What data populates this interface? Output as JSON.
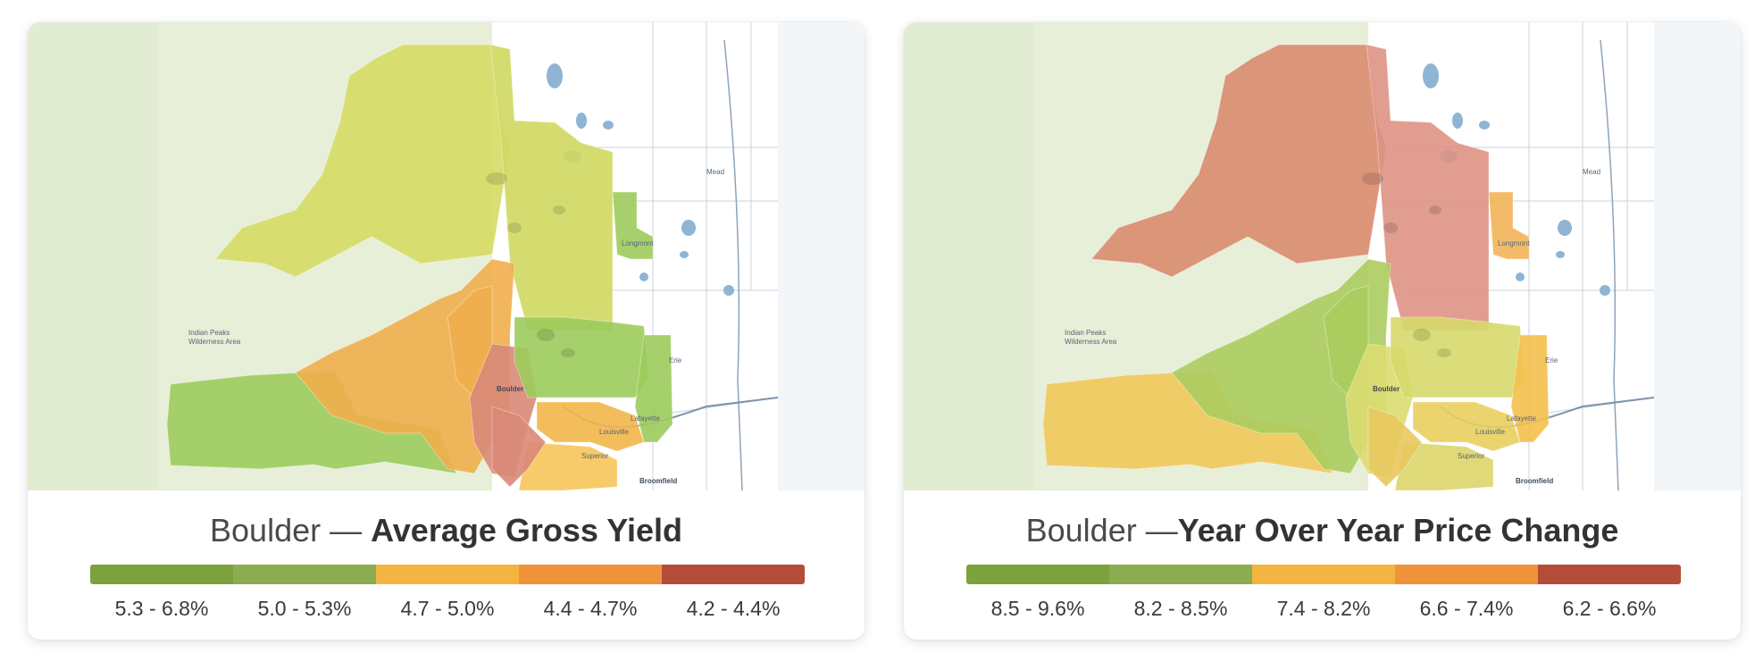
{
  "map_labels": {
    "mead": "Mead",
    "longmont": "Longmont",
    "erie": "Erie",
    "boulder": "Boulder",
    "lafayette": "Lafayette",
    "louisville": "Louisville",
    "superior": "Superior",
    "broomfield": "Broomfield",
    "indian_peaks": "Indian Peaks",
    "wilderness_area": "Wilderness Area"
  },
  "panels": [
    {
      "city": "Boulder —",
      "metric": "Average Gross Yield",
      "metric_value_shown_by": "region fill color",
      "legend": [
        {
          "range": "5.3 - 6.8%",
          "color": "#7ba23d"
        },
        {
          "range": "5.0 - 5.3%",
          "color": "#8cac52"
        },
        {
          "range": "4.7 - 5.0%",
          "color": "#f3b53f"
        },
        {
          "range": "4.4 - 4.7%",
          "color": "#ef9239"
        },
        {
          "range": "4.2 - 4.4%",
          "color": "#b54c38"
        }
      ],
      "region_colors": {
        "nw_large": "#d6da64",
        "north_center": "#cfd860",
        "longmont": "#9ccb5c",
        "sw_large": "#9ccb5c",
        "west_mid": "#f0ae4c",
        "center_left": "#f0ae4c",
        "boulder_core": "#d98878",
        "gunbarrel": "#9ccb5c",
        "lafayette": "#9ccb5c",
        "louisville": "#f3b64a",
        "superior": "#f6c55a",
        "south_strip": "#d98878"
      }
    },
    {
      "city": "Boulder —",
      "metric": "Year Over Year Price Change",
      "metric_value_shown_by": "region fill color",
      "legend": [
        {
          "range": "8.5 - 9.6%",
          "color": "#7ba23d"
        },
        {
          "range": "8.2 - 8.5%",
          "color": "#8cac52"
        },
        {
          "range": "7.4 - 8.2%",
          "color": "#f3b53f"
        },
        {
          "range": "6.6 - 7.4%",
          "color": "#ef9239"
        },
        {
          "range": "6.2 - 6.6%",
          "color": "#b54c38"
        }
      ],
      "region_colors": {
        "nw_large": "#d98b6e",
        "north_center": "#dd9284",
        "longmont": "#f2b456",
        "sw_large": "#f1c85a",
        "west_mid": "#abcc5e",
        "center_left": "#abcc5e",
        "boulder_core": "#dcdc70",
        "gunbarrel": "#d6d96a",
        "lafayette": "#f4c04c",
        "louisville": "#e9cf5e",
        "superior": "#dcd56a",
        "south_strip": "#e9c860"
      }
    }
  ]
}
